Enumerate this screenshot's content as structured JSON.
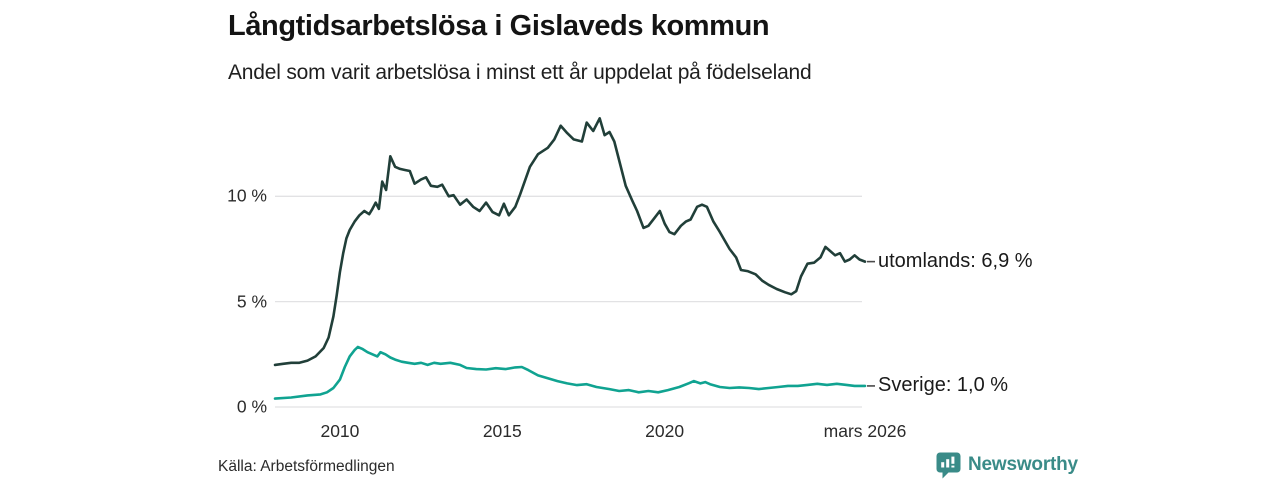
{
  "header": {
    "title": "Långtidsarbetslösa i Gislaveds kommun",
    "subtitle": "Andel som varit arbetslösa i minst ett år uppdelat på födelseland"
  },
  "footer": {
    "source": "Källa: Arbetsförmedlingen",
    "logo": {
      "text": "Newsworthy",
      "icon": "bar-chart-speech-bubble-icon",
      "color": "#3a8b88"
    }
  },
  "chart_data": {
    "type": "line",
    "title": "Långtidsarbetslösa i Gislaveds kommun",
    "subtitle": "Andel som varit arbetslösa i minst ett år uppdelat på födelseland",
    "unit": "%",
    "grid": true,
    "gridline_color": "#e2e2e4",
    "axis_text_color": "#2b2b2b",
    "xlim": [
      2008.0,
      2026.25
    ],
    "ylim": [
      0,
      14
    ],
    "x_axis": {
      "ticks": [
        {
          "x": 2010.0,
          "label": "2010"
        },
        {
          "x": 2015.0,
          "label": "2015"
        },
        {
          "x": 2020.0,
          "label": "2020"
        },
        {
          "x": 2026.17,
          "label": "mars 2026"
        }
      ]
    },
    "y_axis": {
      "ticks": [
        {
          "v": 0,
          "label": "0 %"
        },
        {
          "v": 5,
          "label": "5 %"
        },
        {
          "v": 10,
          "label": "10 %"
        }
      ]
    },
    "legend_position": "end-of-line-labels",
    "series": [
      {
        "name": "utomlands",
        "end_label": "utomlands: 6,9 %",
        "last_value_text": "6,9 %",
        "color": "#213f39",
        "points": [
          [
            2008.0,
            2.0
          ],
          [
            2008.25,
            2.05
          ],
          [
            2008.5,
            2.1
          ],
          [
            2008.75,
            2.1
          ],
          [
            2009.0,
            2.2
          ],
          [
            2009.25,
            2.4
          ],
          [
            2009.5,
            2.8
          ],
          [
            2009.65,
            3.3
          ],
          [
            2009.8,
            4.3
          ],
          [
            2009.9,
            5.3
          ],
          [
            2010.0,
            6.4
          ],
          [
            2010.1,
            7.3
          ],
          [
            2010.2,
            8.0
          ],
          [
            2010.3,
            8.4
          ],
          [
            2010.45,
            8.8
          ],
          [
            2010.6,
            9.1
          ],
          [
            2010.75,
            9.3
          ],
          [
            2010.9,
            9.15
          ],
          [
            2011.0,
            9.4
          ],
          [
            2011.1,
            9.7
          ],
          [
            2011.2,
            9.4
          ],
          [
            2011.3,
            10.7
          ],
          [
            2011.42,
            10.3
          ],
          [
            2011.55,
            11.9
          ],
          [
            2011.7,
            11.4
          ],
          [
            2011.85,
            11.3
          ],
          [
            2012.0,
            11.25
          ],
          [
            2012.15,
            11.2
          ],
          [
            2012.3,
            10.6
          ],
          [
            2012.5,
            10.8
          ],
          [
            2012.65,
            10.9
          ],
          [
            2012.8,
            10.5
          ],
          [
            2013.0,
            10.45
          ],
          [
            2013.15,
            10.55
          ],
          [
            2013.35,
            10.0
          ],
          [
            2013.5,
            10.05
          ],
          [
            2013.7,
            9.6
          ],
          [
            2013.9,
            9.85
          ],
          [
            2014.1,
            9.5
          ],
          [
            2014.3,
            9.3
          ],
          [
            2014.5,
            9.7
          ],
          [
            2014.7,
            9.25
          ],
          [
            2014.9,
            9.1
          ],
          [
            2015.05,
            9.65
          ],
          [
            2015.2,
            9.1
          ],
          [
            2015.4,
            9.5
          ],
          [
            2015.55,
            10.1
          ],
          [
            2015.85,
            11.4
          ],
          [
            2016.1,
            12.0
          ],
          [
            2016.4,
            12.3
          ],
          [
            2016.6,
            12.7
          ],
          [
            2016.8,
            13.35
          ],
          [
            2017.0,
            13.0
          ],
          [
            2017.2,
            12.7
          ],
          [
            2017.45,
            12.6
          ],
          [
            2017.6,
            13.5
          ],
          [
            2017.8,
            13.1
          ],
          [
            2018.0,
            13.7
          ],
          [
            2018.15,
            12.9
          ],
          [
            2018.3,
            13.05
          ],
          [
            2018.45,
            12.6
          ],
          [
            2018.6,
            11.7
          ],
          [
            2018.8,
            10.5
          ],
          [
            2019.0,
            9.8
          ],
          [
            2019.15,
            9.3
          ],
          [
            2019.35,
            8.5
          ],
          [
            2019.5,
            8.6
          ],
          [
            2019.7,
            9.0
          ],
          [
            2019.85,
            9.3
          ],
          [
            2020.0,
            8.7
          ],
          [
            2020.15,
            8.3
          ],
          [
            2020.3,
            8.2
          ],
          [
            2020.5,
            8.6
          ],
          [
            2020.65,
            8.8
          ],
          [
            2020.8,
            8.9
          ],
          [
            2021.0,
            9.5
          ],
          [
            2021.15,
            9.6
          ],
          [
            2021.3,
            9.5
          ],
          [
            2021.5,
            8.8
          ],
          [
            2021.7,
            8.3
          ],
          [
            2021.85,
            7.9
          ],
          [
            2022.0,
            7.5
          ],
          [
            2022.2,
            7.1
          ],
          [
            2022.35,
            6.5
          ],
          [
            2022.55,
            6.45
          ],
          [
            2022.8,
            6.3
          ],
          [
            2023.0,
            6.0
          ],
          [
            2023.2,
            5.8
          ],
          [
            2023.45,
            5.6
          ],
          [
            2023.7,
            5.45
          ],
          [
            2023.9,
            5.35
          ],
          [
            2024.05,
            5.5
          ],
          [
            2024.2,
            6.2
          ],
          [
            2024.4,
            6.8
          ],
          [
            2024.6,
            6.85
          ],
          [
            2024.8,
            7.1
          ],
          [
            2024.95,
            7.6
          ],
          [
            2025.1,
            7.4
          ],
          [
            2025.25,
            7.2
          ],
          [
            2025.4,
            7.3
          ],
          [
            2025.55,
            6.9
          ],
          [
            2025.7,
            7.0
          ],
          [
            2025.85,
            7.2
          ],
          [
            2026.0,
            7.0
          ],
          [
            2026.17,
            6.9
          ]
        ]
      },
      {
        "name": "Sverige",
        "end_label": "Sverige: 1,0 %",
        "last_value_text": "1,0 %",
        "color": "#10a391",
        "points": [
          [
            2008.0,
            0.4
          ],
          [
            2008.5,
            0.45
          ],
          [
            2009.0,
            0.55
          ],
          [
            2009.4,
            0.6
          ],
          [
            2009.6,
            0.7
          ],
          [
            2009.8,
            0.9
          ],
          [
            2010.0,
            1.3
          ],
          [
            2010.15,
            1.9
          ],
          [
            2010.3,
            2.4
          ],
          [
            2010.45,
            2.7
          ],
          [
            2010.55,
            2.85
          ],
          [
            2010.7,
            2.75
          ],
          [
            2010.85,
            2.6
          ],
          [
            2011.0,
            2.5
          ],
          [
            2011.15,
            2.4
          ],
          [
            2011.25,
            2.6
          ],
          [
            2011.4,
            2.5
          ],
          [
            2011.55,
            2.35
          ],
          [
            2011.7,
            2.25
          ],
          [
            2011.9,
            2.15
          ],
          [
            2012.1,
            2.1
          ],
          [
            2012.3,
            2.05
          ],
          [
            2012.5,
            2.1
          ],
          [
            2012.7,
            2.0
          ],
          [
            2012.9,
            2.1
          ],
          [
            2013.1,
            2.05
          ],
          [
            2013.4,
            2.1
          ],
          [
            2013.7,
            2.0
          ],
          [
            2013.9,
            1.85
          ],
          [
            2014.2,
            1.8
          ],
          [
            2014.5,
            1.78
          ],
          [
            2014.8,
            1.84
          ],
          [
            2015.1,
            1.8
          ],
          [
            2015.4,
            1.88
          ],
          [
            2015.6,
            1.9
          ],
          [
            2015.8,
            1.75
          ],
          [
            2016.1,
            1.5
          ],
          [
            2016.4,
            1.36
          ],
          [
            2016.7,
            1.23
          ],
          [
            2017.0,
            1.12
          ],
          [
            2017.3,
            1.04
          ],
          [
            2017.6,
            1.08
          ],
          [
            2017.9,
            0.95
          ],
          [
            2018.3,
            0.85
          ],
          [
            2018.6,
            0.76
          ],
          [
            2018.9,
            0.8
          ],
          [
            2019.2,
            0.7
          ],
          [
            2019.5,
            0.76
          ],
          [
            2019.8,
            0.7
          ],
          [
            2020.1,
            0.8
          ],
          [
            2020.45,
            0.95
          ],
          [
            2020.75,
            1.13
          ],
          [
            2020.9,
            1.23
          ],
          [
            2021.1,
            1.12
          ],
          [
            2021.25,
            1.18
          ],
          [
            2021.4,
            1.08
          ],
          [
            2021.7,
            0.95
          ],
          [
            2022.0,
            0.9
          ],
          [
            2022.3,
            0.93
          ],
          [
            2022.6,
            0.9
          ],
          [
            2022.9,
            0.85
          ],
          [
            2023.2,
            0.9
          ],
          [
            2023.5,
            0.95
          ],
          [
            2023.8,
            1.0
          ],
          [
            2024.1,
            1.0
          ],
          [
            2024.4,
            1.05
          ],
          [
            2024.7,
            1.1
          ],
          [
            2025.0,
            1.05
          ],
          [
            2025.3,
            1.1
          ],
          [
            2025.6,
            1.05
          ],
          [
            2025.85,
            1.0
          ],
          [
            2026.17,
            1.0
          ]
        ]
      }
    ]
  }
}
